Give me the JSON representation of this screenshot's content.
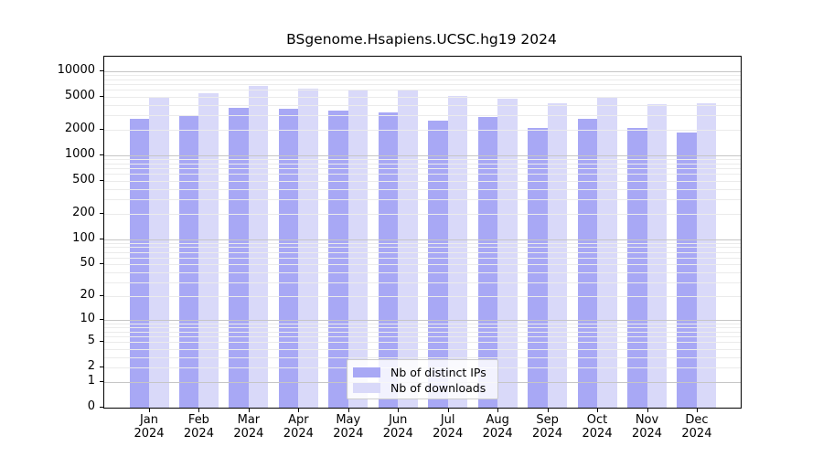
{
  "title": "BSgenome.Hsapiens.UCSC.hg19 2024",
  "chart_data": {
    "type": "bar",
    "title": "BSgenome.Hsapiens.UCSC.hg19 2024",
    "year": "2024",
    "categories": [
      "Jan",
      "Feb",
      "Mar",
      "Apr",
      "May",
      "Jun",
      "Jul",
      "Aug",
      "Sep",
      "Oct",
      "Nov",
      "Dec"
    ],
    "series": [
      {
        "name": "Nb of distinct IPs",
        "color": "#a8a8f5",
        "values": [
          2700,
          2920,
          3700,
          3600,
          3400,
          3200,
          2600,
          2830,
          2090,
          2750,
          2100,
          1860
        ]
      },
      {
        "name": "Nb of downloads",
        "color": "#d9d9f9",
        "values": [
          4950,
          5500,
          6700,
          6250,
          6000,
          5900,
          5100,
          4700,
          4150,
          4850,
          4030,
          4200
        ]
      }
    ],
    "y_axis": {
      "scale": "log10(value+1)",
      "ticks": [
        10000,
        5000,
        2000,
        1000,
        500,
        200,
        100,
        50,
        20,
        10,
        5,
        2,
        1,
        0
      ],
      "top_value": 14900
    },
    "x_axis": {
      "tick_label_format": "month over year"
    },
    "grid": true,
    "legend_position": "bottom-center"
  },
  "colors": {
    "grid_minor": "#ebebeb",
    "grid_major": "#c6c6c6",
    "axis": "#000000",
    "background": "#ffffff"
  }
}
